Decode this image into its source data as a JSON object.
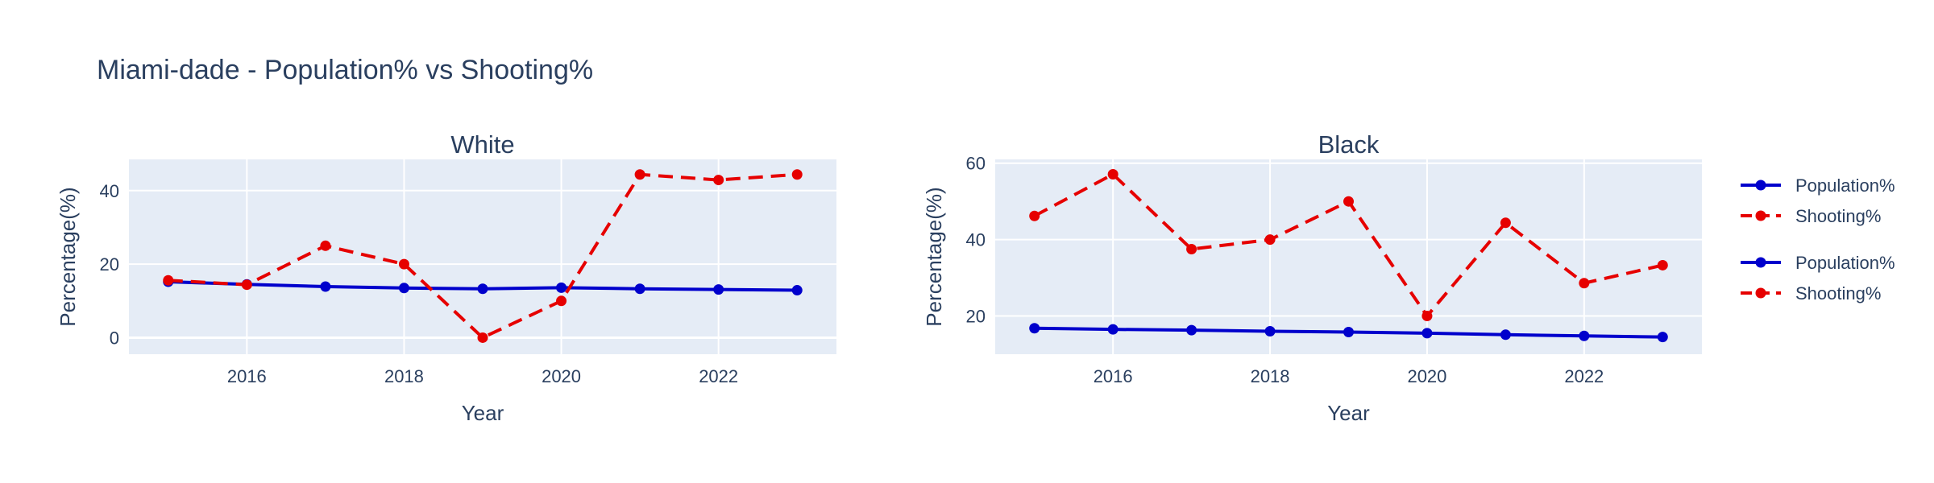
{
  "figure": {
    "title": "Miami-dade - Population% vs Shooting%"
  },
  "legend": [
    {
      "name": "Population%",
      "color": "#0000cc",
      "dash": "solid"
    },
    {
      "name": "Shooting%",
      "color": "#e60000",
      "dash": "dash"
    },
    {
      "name": "Population%",
      "color": "#0000cc",
      "dash": "solid"
    },
    {
      "name": "Shooting%",
      "color": "#e60000",
      "dash": "dash"
    }
  ],
  "chart_data": [
    {
      "type": "line",
      "title": "White",
      "xlabel": "Year",
      "ylabel": "Percentage(%)",
      "x": [
        2015,
        2016,
        2017,
        2018,
        2019,
        2020,
        2021,
        2022,
        2023
      ],
      "xlim": [
        2014.5,
        2023.5
      ],
      "ylim": [
        -4.5,
        48.5
      ],
      "xticks": [
        2016,
        2018,
        2020,
        2022
      ],
      "yticks": [
        0,
        20,
        40
      ],
      "grid": true,
      "series": [
        {
          "name": "Population%",
          "color": "#0000cc",
          "dash": "solid",
          "values": [
            15.2,
            14.5,
            13.9,
            13.5,
            13.3,
            13.6,
            13.3,
            13.1,
            12.9
          ]
        },
        {
          "name": "Shooting%",
          "color": "#e60000",
          "dash": "dash",
          "values": [
            15.6,
            14.4,
            25.0,
            20.0,
            0.0,
            10.0,
            44.4,
            42.9,
            44.4
          ]
        }
      ]
    },
    {
      "type": "line",
      "title": "Black",
      "xlabel": "Year",
      "ylabel": "Percentage(%)",
      "x": [
        2015,
        2016,
        2017,
        2018,
        2019,
        2020,
        2021,
        2022,
        2023
      ],
      "xlim": [
        2014.5,
        2023.5
      ],
      "ylim": [
        10,
        61
      ],
      "xticks": [
        2016,
        2018,
        2020,
        2022
      ],
      "yticks": [
        20,
        40,
        60
      ],
      "grid": true,
      "series": [
        {
          "name": "Population%",
          "color": "#0000cc",
          "dash": "solid",
          "values": [
            16.8,
            16.5,
            16.3,
            16.0,
            15.8,
            15.5,
            15.1,
            14.8,
            14.5
          ]
        },
        {
          "name": "Shooting%",
          "color": "#e60000",
          "dash": "dash",
          "values": [
            46.2,
            57.1,
            37.5,
            40.0,
            50.0,
            20.0,
            44.4,
            28.6,
            33.3
          ]
        }
      ]
    }
  ]
}
